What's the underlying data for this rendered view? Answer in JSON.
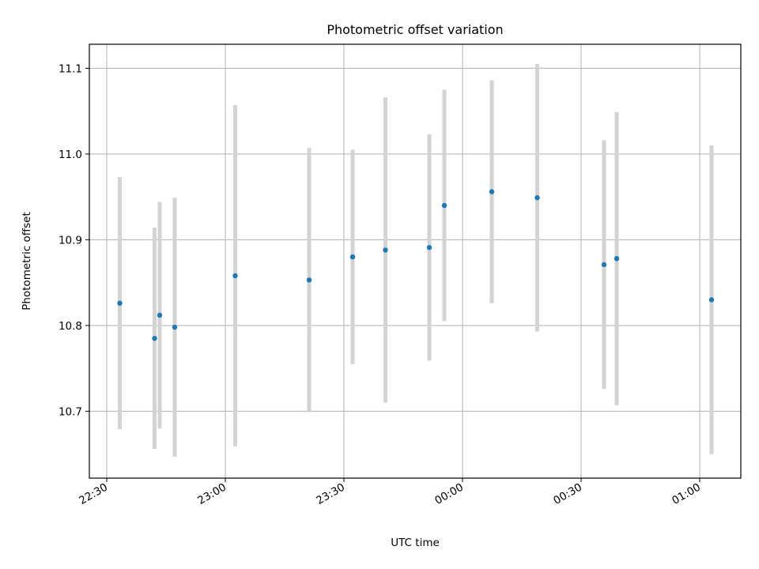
{
  "chart_data": {
    "type": "scatter",
    "title": "Photometric offset variation",
    "xlabel": "UTC time",
    "ylabel": "Photometric offset",
    "x_ticks": [
      "22:30",
      "23:00",
      "23:30",
      "00:00",
      "00:30",
      "01:00"
    ],
    "x_tick_values": [
      "22:30",
      "23:00",
      "23:30",
      "00:00",
      "00:30",
      "01:00"
    ],
    "y_ticks": [
      "10.7",
      "10.8",
      "10.9",
      "11.0",
      "11.1"
    ],
    "y_tick_values": [
      10.7,
      10.8,
      10.9,
      11.0,
      11.1
    ],
    "xlim": [
      "22:25.6",
      "01:10.4"
    ],
    "ylim": [
      10.622,
      11.128
    ],
    "grid": true,
    "series": [
      {
        "marker_color": "#1f77b4",
        "errorbar_color": "#d3d3d3",
        "points": [
          {
            "x": "22:33:18",
            "y": 10.826,
            "err": 0.147
          },
          {
            "x": "22:42:06",
            "y": 10.785,
            "err": 0.129
          },
          {
            "x": "22:43:24",
            "y": 10.812,
            "err": 0.132
          },
          {
            "x": "22:47:12",
            "y": 10.798,
            "err": 0.151
          },
          {
            "x": "23:02:30",
            "y": 10.858,
            "err": 0.199
          },
          {
            "x": "23:21:12",
            "y": 10.853,
            "err": 0.154
          },
          {
            "x": "23:32:12",
            "y": 10.88,
            "err": 0.125
          },
          {
            "x": "23:40:30",
            "y": 10.888,
            "err": 0.178
          },
          {
            "x": "23:51:36",
            "y": 10.891,
            "err": 0.132
          },
          {
            "x": "23:55:24",
            "y": 10.94,
            "err": 0.135
          },
          {
            "x": "00:07:24",
            "y": 10.956,
            "err": 0.13
          },
          {
            "x": "00:18:54",
            "y": 10.949,
            "err": 0.156
          },
          {
            "x": "00:35:48",
            "y": 10.871,
            "err": 0.145
          },
          {
            "x": "00:39:00",
            "y": 10.878,
            "err": 0.171
          },
          {
            "x": "01:03:00",
            "y": 10.83,
            "err": 0.18
          }
        ]
      }
    ]
  }
}
